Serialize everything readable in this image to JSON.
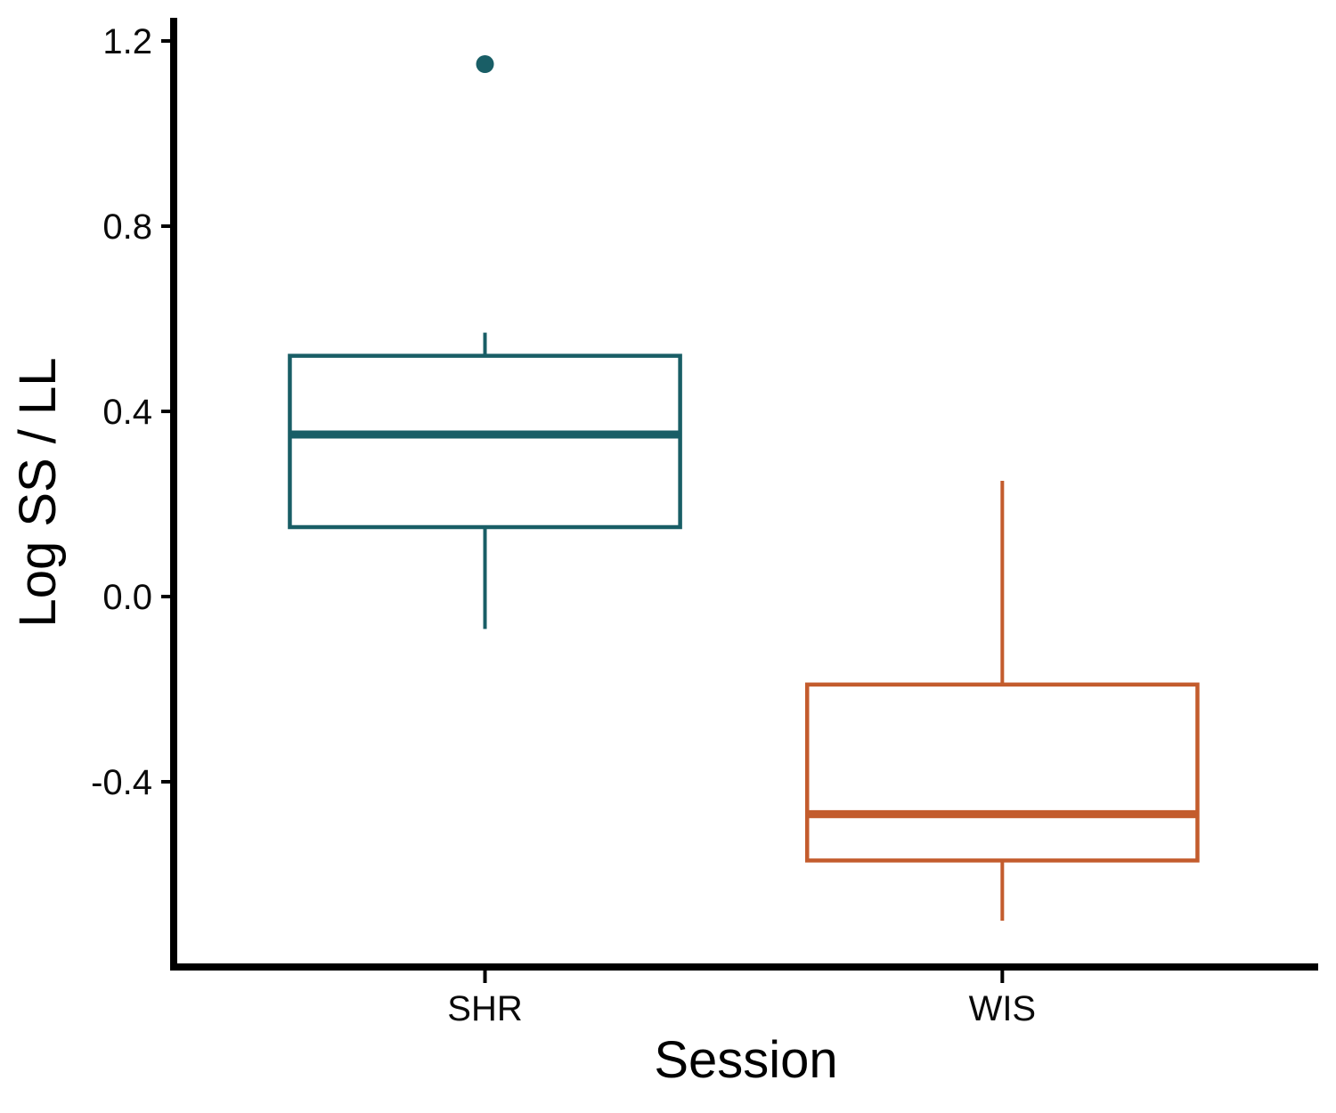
{
  "chart_data": {
    "type": "boxplot",
    "title": "",
    "xlabel": "Session",
    "ylabel": "Log SS / LL",
    "categories": [
      "SHR",
      "WIS"
    ],
    "y_tick_values": [
      1.2,
      0.8,
      0.4,
      0.0,
      -0.4
    ],
    "y_tick_labels": [
      "1.2",
      "0.8",
      "0.4",
      "0.0",
      "-0.4"
    ],
    "ylim": [
      -0.8,
      1.25
    ],
    "grid": "off",
    "legend": "none",
    "axis_color": "#000000",
    "series": [
      {
        "name": "SHR",
        "color": "#195E66",
        "whisker_low": -0.07,
        "q1": 0.15,
        "median": 0.35,
        "q3": 0.52,
        "whisker_high": 0.57,
        "outliers": [
          1.15
        ]
      },
      {
        "name": "WIS",
        "color": "#C35C2D",
        "whisker_low": -0.7,
        "q1": -0.57,
        "median": -0.47,
        "q3": -0.19,
        "whisker_high": 0.25,
        "outliers": []
      }
    ]
  }
}
